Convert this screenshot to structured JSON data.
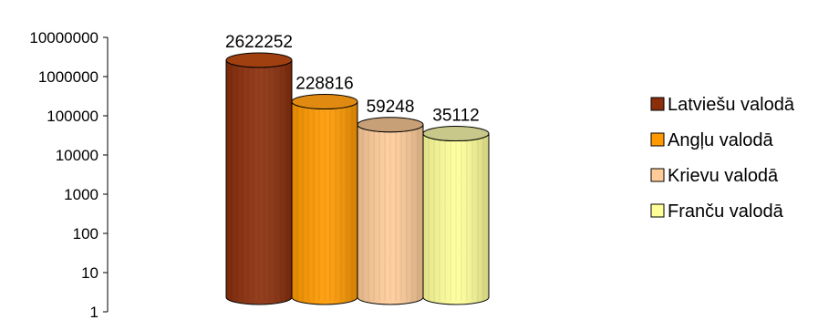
{
  "chart_data": {
    "type": "bar",
    "style": "3d-cylinder",
    "yscale": "log",
    "ylim": [
      1,
      10000000
    ],
    "yticks": [
      {
        "value": 1,
        "label": "1"
      },
      {
        "value": 10,
        "label": "10"
      },
      {
        "value": 100,
        "label": "100"
      },
      {
        "value": 1000,
        "label": "1000"
      },
      {
        "value": 10000,
        "label": "10000"
      },
      {
        "value": 100000,
        "label": "100000"
      },
      {
        "value": 1000000,
        "label": "1000000"
      },
      {
        "value": 10000000,
        "label": "10000000"
      }
    ],
    "grid": false,
    "legend_position": "right",
    "series": [
      {
        "name": "Latviešu valodā",
        "value": 2622252,
        "value_label": "2622252",
        "color": "#8B2E0B",
        "top_color": "#A04010"
      },
      {
        "name": "Angļu valodā",
        "value": 228816,
        "value_label": "228816",
        "color": "#FF9900",
        "top_color": "#E08A12"
      },
      {
        "name": "Krievu valodā",
        "value": 59248,
        "value_label": "59248",
        "color": "#FFCC99",
        "top_color": "#C8A078"
      },
      {
        "name": "Franču valodā",
        "value": 35112,
        "value_label": "35112",
        "color": "#FFFF99",
        "top_color": "#C8C88A"
      }
    ]
  }
}
